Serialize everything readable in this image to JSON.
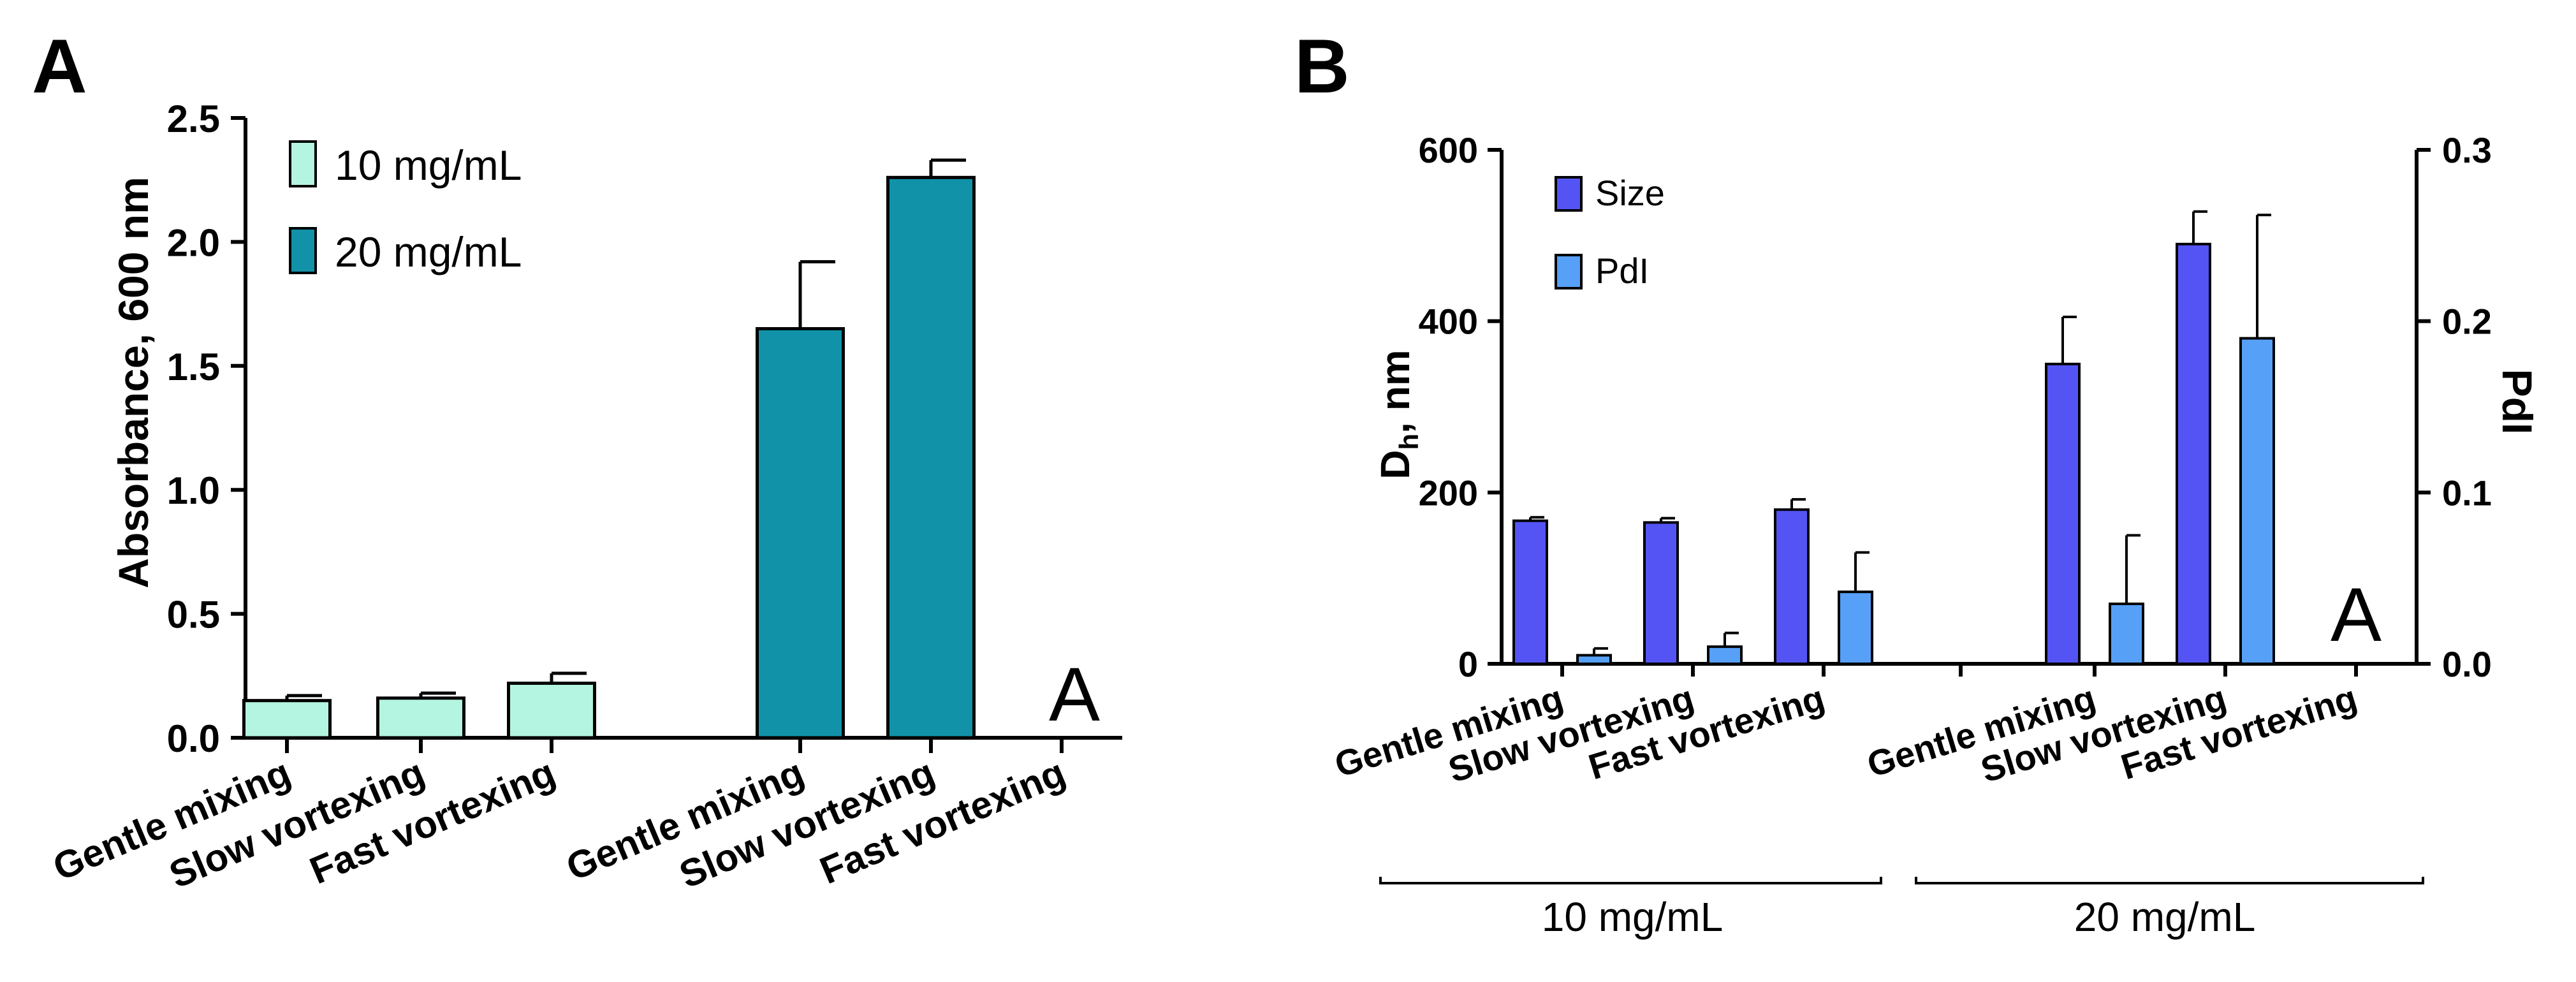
{
  "panels": {
    "A": {
      "label": "A",
      "legend": [
        "10 mg/mL",
        "20 mg/mL"
      ],
      "annotation": "A"
    },
    "B": {
      "label": "B",
      "legend": [
        "Size",
        "PdI"
      ],
      "annotation": "A",
      "group_labels": [
        "10 mg/mL",
        "20 mg/mL"
      ]
    }
  },
  "colors": {
    "c10": "#b3f5e0",
    "c20": "#1192a8",
    "size": "#5454f5",
    "pdi": "#56a0f7",
    "axis": "#000000"
  },
  "chart_data": [
    {
      "type": "bar",
      "panel": "A",
      "categories": [
        "Gentle mixing",
        "Slow vortexing",
        "Fast vortexing",
        "Gentle mixing",
        "Slow vortexing",
        "Fast vortexing"
      ],
      "series": [
        {
          "name": "10 mg/mL",
          "values": [
            0.15,
            0.16,
            0.22,
            null,
            null,
            null
          ],
          "errors": [
            0.02,
            0.02,
            0.04,
            null,
            null,
            null
          ]
        },
        {
          "name": "20 mg/mL",
          "values": [
            null,
            null,
            null,
            1.65,
            2.26,
            null
          ],
          "errors": [
            null,
            null,
            null,
            0.27,
            0.07,
            null
          ]
        }
      ],
      "title": "",
      "xlabel": "",
      "ylabel": "Absorbance,  600 nm",
      "ylim": [
        0,
        2.5
      ],
      "yticks": [
        "0.0",
        "0.5",
        "1.0",
        "1.5",
        "2.0",
        "2.5"
      ],
      "legend_position": "top-left"
    },
    {
      "type": "bar",
      "panel": "B",
      "categories": [
        "Gentle mixing",
        "Slow vortexing",
        "Fast vortexing",
        "Gentle mixing",
        "Slow vortexing",
        "Fast vortexing"
      ],
      "series": [
        {
          "name": "Size",
          "axis": "left",
          "values": [
            167,
            165,
            180,
            350,
            490,
            null
          ],
          "errors": [
            4,
            5,
            12,
            55,
            38,
            null
          ]
        },
        {
          "name": "PdI",
          "axis": "right",
          "values": [
            0.005,
            0.01,
            0.042,
            0.035,
            0.19,
            null
          ],
          "errors": [
            0.004,
            0.008,
            0.023,
            0.04,
            0.072,
            null
          ]
        }
      ],
      "title": "",
      "xlabel": "",
      "ylabel": "D",
      "ylabel_sub": "h",
      "ylabel_suffix": ", nm",
      "ylim": [
        0,
        600
      ],
      "yticks": [
        "0",
        "200",
        "400",
        "600"
      ],
      "y2label": "PdI",
      "y2lim": [
        0,
        0.3
      ],
      "y2ticks": [
        "0.0",
        "0.1",
        "0.2",
        "0.3"
      ],
      "legend_position": "top-left"
    }
  ]
}
